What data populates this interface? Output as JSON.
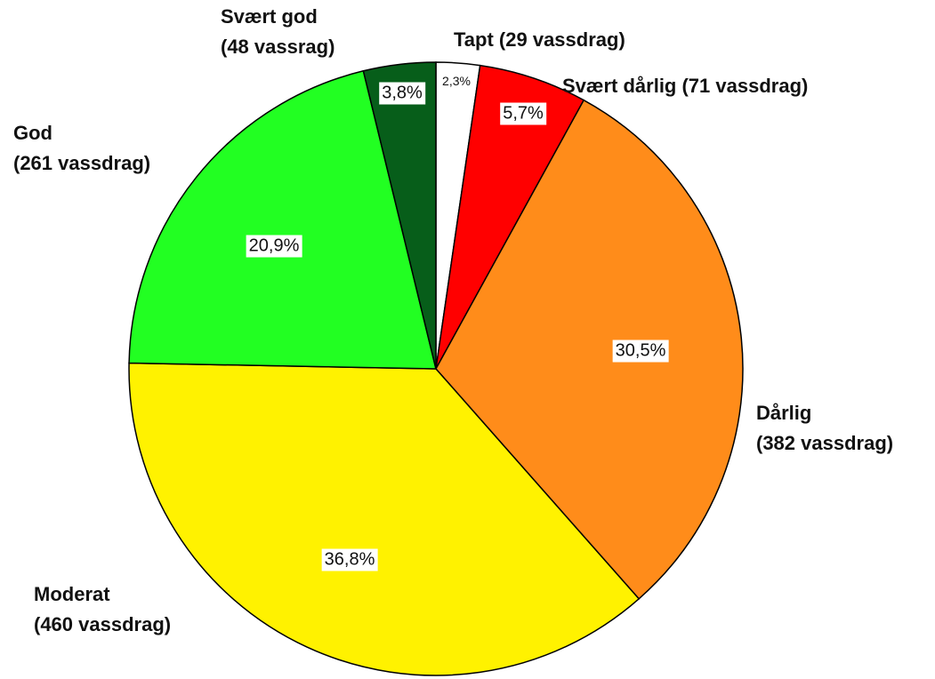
{
  "chart_data": {
    "type": "pie",
    "categories": [
      "Tapt (29 vassdrag)",
      "Svært dårlig (71 vassdrag)",
      "Dårlig\n(382 vassdrag)",
      "Moderat\n(460 vassdrag)",
      "God\n(261 vassdrag)",
      "Svært god\n(48 vassrag)"
    ],
    "values": [
      2.3,
      5.7,
      30.5,
      36.8,
      20.9,
      3.8
    ],
    "value_labels": [
      "2,3%",
      "5,7%",
      "30,5%",
      "36,8%",
      "20,9%",
      "3,8%"
    ],
    "colors": [
      "#ffffff",
      "#ff0000",
      "#ff8c1a",
      "#fff200",
      "#22ff22",
      "#075e1a"
    ]
  }
}
